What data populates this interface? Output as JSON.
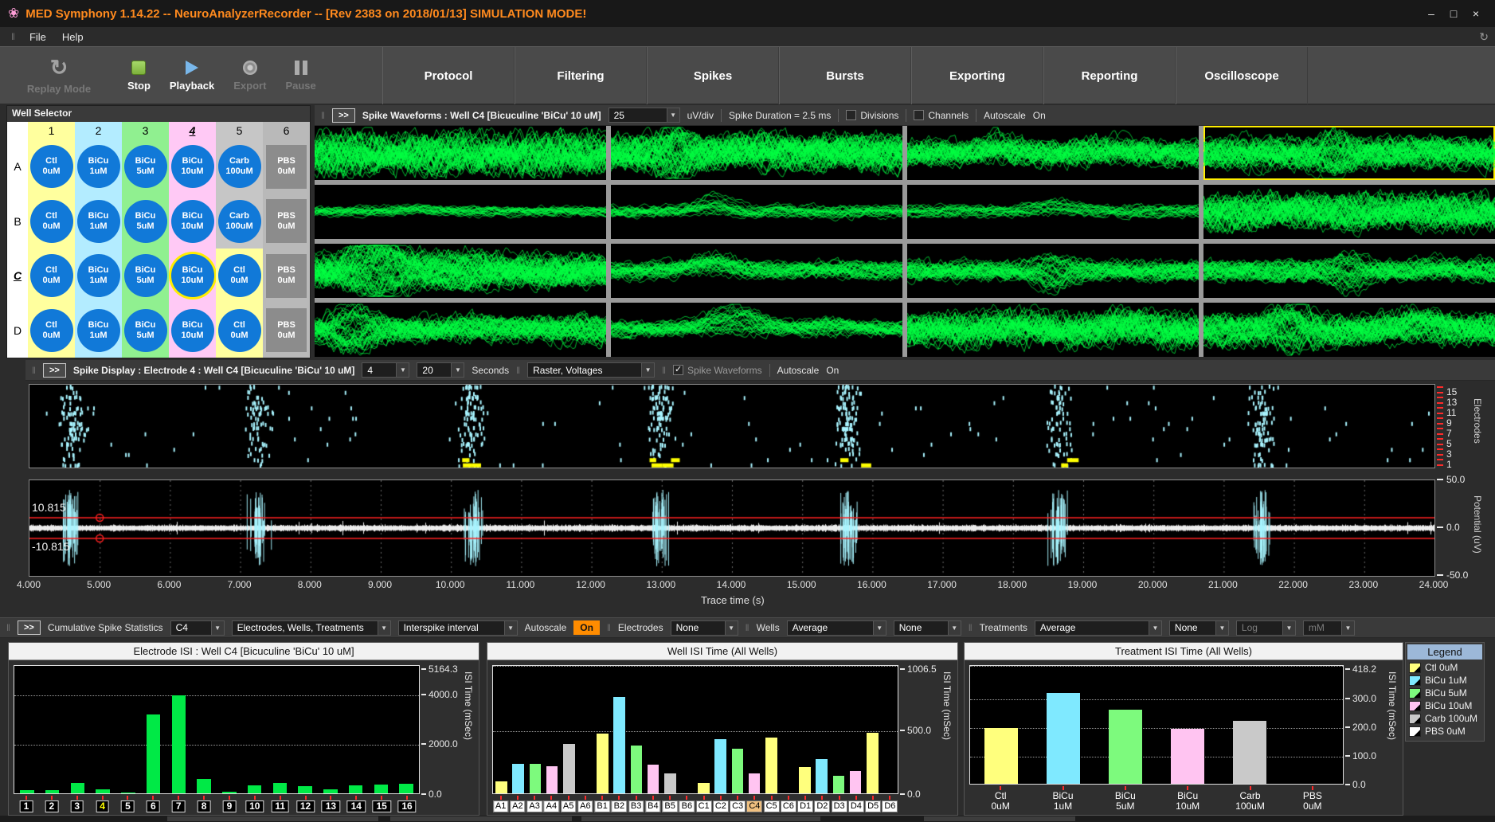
{
  "ui": {
    "grip": "‖",
    "collapse": ">>",
    "dropdown_arrow": "▼",
    "check": "✓"
  },
  "window": {
    "icon": "❀",
    "title": "MED Symphony 1.14.22 -- NeuroAnalyzerRecorder -- [Rev 2383 on 2018/01/13] SIMULATION MODE!",
    "minimize": "–",
    "maximize": "□",
    "close": "×"
  },
  "menu": {
    "items": [
      "File",
      "Help"
    ],
    "status_icon": "↻"
  },
  "toolbar": {
    "replay_label": "Replay Mode",
    "buttons": [
      {
        "label": "Stop",
        "icon": "stop-icon",
        "enabled": true
      },
      {
        "label": "Playback",
        "icon": "play-icon",
        "enabled": true
      },
      {
        "label": "Export",
        "icon": "record-icon",
        "enabled": false
      },
      {
        "label": "Pause",
        "icon": "pause-icon",
        "enabled": false
      }
    ],
    "tabs": [
      "Protocol",
      "Filtering",
      "Spikes",
      "Bursts",
      "Exporting",
      "Reporting",
      "Oscilloscope"
    ]
  },
  "well_selector": {
    "title": "Well Selector",
    "columns": [
      {
        "label": "1",
        "color": "#ffff9e"
      },
      {
        "label": "2",
        "color": "#b3ecff"
      },
      {
        "label": "3",
        "color": "#90f090"
      },
      {
        "label": "4",
        "color": "#ffc9f5"
      },
      {
        "label": "5",
        "color": "#c6c6c6"
      },
      {
        "label": "6",
        "color": "#b9b9b9"
      }
    ],
    "selected_column": "4",
    "rows": [
      "A",
      "B",
      "C",
      "D"
    ],
    "selected_row": "C",
    "well_color": "#1179d8",
    "wells": [
      [
        {
          "line1": "Ctl",
          "line2": "0uM",
          "bg": "#ffff9e",
          "kind": "circle"
        },
        {
          "line1": "BiCu",
          "line2": "1uM",
          "bg": "#b3ecff",
          "kind": "circle"
        },
        {
          "line1": "BiCu",
          "line2": "5uM",
          "bg": "#90f090",
          "kind": "circle"
        },
        {
          "line1": "BiCu",
          "line2": "10uM",
          "bg": "#ffc9f5",
          "kind": "circle"
        },
        {
          "line1": "Carb",
          "line2": "100uM",
          "bg": "#c6c6c6",
          "kind": "circle"
        },
        {
          "line1": "PBS",
          "line2": "0uM",
          "bg": "#b9b9b9",
          "kind": "block"
        }
      ],
      [
        {
          "line1": "Ctl",
          "line2": "0uM",
          "bg": "#ffff9e",
          "kind": "circle"
        },
        {
          "line1": "BiCu",
          "line2": "1uM",
          "bg": "#b3ecff",
          "kind": "circle"
        },
        {
          "line1": "BiCu",
          "line2": "5uM",
          "bg": "#90f090",
          "kind": "circle"
        },
        {
          "line1": "BiCu",
          "line2": "10uM",
          "bg": "#ffc9f5",
          "kind": "circle"
        },
        {
          "line1": "Carb",
          "line2": "100uM",
          "bg": "#c6c6c6",
          "kind": "circle"
        },
        {
          "line1": "PBS",
          "line2": "0uM",
          "bg": "#b9b9b9",
          "kind": "block"
        }
      ],
      [
        {
          "line1": "Ctl",
          "line2": "0uM",
          "bg": "#ffff9e",
          "kind": "circle"
        },
        {
          "line1": "BiCu",
          "line2": "1uM",
          "bg": "#b3ecff",
          "kind": "circle"
        },
        {
          "line1": "BiCu",
          "line2": "5uM",
          "bg": "#90f090",
          "kind": "circle"
        },
        {
          "line1": "BiCu",
          "line2": "10uM",
          "bg": "#ffc9f5",
          "kind": "circle",
          "selected": true
        },
        {
          "line1": "Ctl",
          "line2": "0uM",
          "bg": "#ffff9e",
          "kind": "circle"
        },
        {
          "line1": "PBS",
          "line2": "0uM",
          "bg": "#b9b9b9",
          "kind": "block"
        }
      ],
      [
        {
          "line1": "Ctl",
          "line2": "0uM",
          "bg": "#ffff9e",
          "kind": "circle"
        },
        {
          "line1": "BiCu",
          "line2": "1uM",
          "bg": "#b3ecff",
          "kind": "circle"
        },
        {
          "line1": "BiCu",
          "line2": "5uM",
          "bg": "#90f090",
          "kind": "circle"
        },
        {
          "line1": "BiCu",
          "line2": "10uM",
          "bg": "#ffc9f5",
          "kind": "circle"
        },
        {
          "line1": "Ctl",
          "line2": "0uM",
          "bg": "#ffff9e",
          "kind": "circle"
        },
        {
          "line1": "PBS",
          "line2": "0uM",
          "bg": "#b9b9b9",
          "kind": "block"
        }
      ]
    ]
  },
  "spike_waveforms": {
    "title": "Spike Waveforms : Well C4 [Bicuculine 'BiCu' 10 uM]",
    "scale_value": "25",
    "scale_unit": "uV/div",
    "duration_label": "Spike Duration = 2.5 ms",
    "divisions_label": "Divisions",
    "channels_label": "Channels",
    "autoscale_label": "Autoscale",
    "autoscale_state": "On",
    "trace_color": "#00ff41",
    "selected_cell": 3,
    "cells": [
      {
        "band": 0.4,
        "lines": 46,
        "seed": 11,
        "bumps": [
          {
            "x": 0.08,
            "w": 0.05,
            "h": 0.12,
            "sym": 1
          },
          {
            "x": 0.55,
            "w": 0.2,
            "h": 0.05,
            "sym": 1
          }
        ]
      },
      {
        "band": 0.34,
        "lines": 52,
        "seed": 22,
        "bumps": [
          {
            "x": 0.22,
            "w": 0.07,
            "h": 0.42,
            "sym": 1
          },
          {
            "x": 0.5,
            "w": 0.12,
            "h": 0.12,
            "sym": 0
          },
          {
            "x": 0.8,
            "w": 0.1,
            "h": 0.1,
            "sym": 0
          }
        ]
      },
      {
        "band": 0.28,
        "lines": 40,
        "seed": 33,
        "bumps": [
          {
            "x": 0.3,
            "w": 0.09,
            "h": 0.22,
            "sym": 0
          },
          {
            "x": 0.7,
            "w": 0.12,
            "h": 0.12,
            "sym": 0
          }
        ]
      },
      {
        "band": 0.3,
        "lines": 46,
        "seed": 44,
        "bumps": [
          {
            "x": 0.45,
            "w": 0.07,
            "h": 0.38,
            "sym": 1
          },
          {
            "x": 0.75,
            "w": 0.1,
            "h": 0.1,
            "sym": 0
          }
        ]
      },
      {
        "band": 0.1,
        "lines": 18,
        "seed": 55,
        "bumps": [
          {
            "x": 0.35,
            "w": 0.1,
            "h": 0.08,
            "sym": 0
          }
        ]
      },
      {
        "band": 0.12,
        "lines": 20,
        "seed": 66,
        "bumps": [
          {
            "x": 0.35,
            "w": 0.08,
            "h": 0.3,
            "sym": 0
          }
        ]
      },
      {
        "band": 0.12,
        "lines": 18,
        "seed": 77,
        "bumps": [
          {
            "x": 0.5,
            "w": 0.1,
            "h": 0.18,
            "sym": 0
          }
        ]
      },
      {
        "band": 0.34,
        "lines": 46,
        "seed": 88,
        "bumps": [
          {
            "x": 0.3,
            "w": 0.15,
            "h": 0.1,
            "sym": 0
          },
          {
            "x": 0.7,
            "w": 0.12,
            "h": 0.08,
            "sym": 0
          }
        ]
      },
      {
        "band": 0.3,
        "lines": 56,
        "seed": 99,
        "bumps": [
          {
            "x": 0.22,
            "w": 0.13,
            "h": 0.55,
            "sym": 1
          },
          {
            "x": 0.5,
            "w": 0.15,
            "h": 0.2,
            "sym": 1
          }
        ]
      },
      {
        "band": 0.18,
        "lines": 30,
        "seed": 101,
        "bumps": [
          {
            "x": 0.35,
            "w": 0.1,
            "h": 0.3,
            "sym": 0
          },
          {
            "x": 0.75,
            "w": 0.1,
            "h": 0.08,
            "sym": 0
          }
        ]
      },
      {
        "band": 0.2,
        "lines": 36,
        "seed": 112,
        "bumps": [
          {
            "x": 0.5,
            "w": 0.08,
            "h": 0.35,
            "sym": 1
          }
        ]
      },
      {
        "band": 0.22,
        "lines": 36,
        "seed": 123,
        "bumps": [
          {
            "x": 0.5,
            "w": 0.08,
            "h": 0.38,
            "sym": 1
          },
          {
            "x": 0.8,
            "w": 0.08,
            "h": 0.1,
            "sym": 0
          }
        ]
      },
      {
        "band": 0.26,
        "lines": 42,
        "seed": 134,
        "bumps": [
          {
            "x": 0.13,
            "w": 0.08,
            "h": 0.42,
            "sym": 1
          },
          {
            "x": 0.6,
            "w": 0.15,
            "h": 0.08,
            "sym": 0
          }
        ]
      },
      {
        "band": 0.16,
        "lines": 30,
        "seed": 145,
        "bumps": [
          {
            "x": 0.42,
            "w": 0.12,
            "h": 0.45,
            "sym": 0
          },
          {
            "x": 0.75,
            "w": 0.1,
            "h": 0.15,
            "sym": 0
          }
        ]
      },
      {
        "band": 0.34,
        "lines": 46,
        "seed": 156,
        "bumps": [
          {
            "x": 0.35,
            "w": 0.12,
            "h": 0.12,
            "sym": 0
          },
          {
            "x": 0.75,
            "w": 0.1,
            "h": 0.15,
            "sym": 0
          }
        ]
      },
      {
        "band": 0.3,
        "lines": 46,
        "seed": 167,
        "bumps": [
          {
            "x": 0.3,
            "w": 0.09,
            "h": 0.42,
            "sym": 1
          },
          {
            "x": 0.75,
            "w": 0.1,
            "h": 0.25,
            "sym": 0
          }
        ]
      }
    ]
  },
  "spike_display": {
    "title": "Spike Display : Electrode 4 : Well C4 [Bicuculine 'BiCu' 10 uM]",
    "window_value": "4",
    "span_value": "20",
    "seconds_label": "Seconds",
    "mode_value": "Raster, Voltages",
    "waveforms_label": "Spike Waveforms",
    "waveforms_checked": true,
    "autoscale_label": "Autoscale",
    "autoscale_state": "On",
    "time_range": [
      4,
      24
    ],
    "burst_times": [
      4.6,
      7.25,
      10.3,
      12.95,
      15.65,
      18.65,
      21.55
    ],
    "raster": {
      "ylabel": "Electrodes",
      "ytick_values": [
        15,
        13,
        11,
        9,
        7,
        5,
        3,
        1
      ],
      "electrodes": 16,
      "tick_color": "#a8f4ff",
      "yellow_color": "#ffff00",
      "yellow_bursts": [
        2,
        3,
        4,
        5
      ]
    },
    "trace": {
      "threshold_value": 10.815,
      "threshold_labels": [
        "10.815",
        "-10.815"
      ],
      "ylim": [
        -50,
        50
      ],
      "yticks": [
        "50.0",
        "0.0",
        "-50.0"
      ],
      "ylabel": "Potential (uV)",
      "xlabel": "Trace time (s)",
      "marker_time": 5.0
    }
  },
  "stats_bar": {
    "title": "Cumulative Spike Statistics",
    "well_value": "C4",
    "grouping_value": "Electrodes, Wells, Treatments",
    "metric_value": "Interspike interval",
    "autoscale_label": "Autoscale",
    "autoscale_state": "On",
    "electrodes_label": "Electrodes",
    "electrodes_value": "None",
    "wells_label": "Wells",
    "wells_avg_value": "Average",
    "wells_extra_value": "None",
    "treatments_label": "Treatments",
    "treatments_avg_value": "Average",
    "treatments_extra_value": "None",
    "log_value": "Log",
    "unit_value": "mM"
  },
  "legend": {
    "title": "Legend",
    "items": [
      {
        "label": "Ctl 0uM",
        "color": "#ffff7d"
      },
      {
        "label": "BiCu 1uM",
        "color": "#7fe9ff"
      },
      {
        "label": "BiCu 5uM",
        "color": "#7dfa7d"
      },
      {
        "label": "BiCu 10uM",
        "color": "#ffc4f1"
      },
      {
        "label": "Carb 100uM",
        "color": "#c9c9c9"
      },
      {
        "label": "PBS 0uM",
        "color": "#ffffff"
      }
    ]
  },
  "chart_data": [
    {
      "type": "bar",
      "title": "Electrode ISI : Well C4 [Bicuculine 'BiCu' 10 uM]",
      "categories": [
        "1",
        "2",
        "3",
        "4",
        "5",
        "6",
        "7",
        "8",
        "9",
        "10",
        "11",
        "12",
        "13",
        "14",
        "15",
        "16"
      ],
      "values": [
        120,
        130,
        430,
        150,
        20,
        3180,
        3980,
        590,
        50,
        330,
        420,
        280,
        170,
        330,
        360,
        400
      ],
      "bar_color": "#00e946",
      "ylabel": "ISI Time (mSec)",
      "ylim": [
        0,
        5164.3
      ],
      "yticks": [
        {
          "value": 5164.3,
          "label": "5164.3",
          "grid": false
        },
        {
          "value": 4000,
          "label": "4000.0",
          "grid": true
        },
        {
          "value": 2000,
          "label": "2000.0",
          "grid": true
        },
        {
          "value": 0,
          "label": "0.0",
          "grid": false
        }
      ],
      "category_style": "dark-box",
      "highlight_category": "4",
      "highlight_text_color": "#ffff00",
      "slot_fraction": 0.55
    },
    {
      "type": "bar",
      "title": "Well ISI Time (All Wells)",
      "categories": [
        "A1",
        "A2",
        "A3",
        "A4",
        "A5",
        "A6",
        "B1",
        "B2",
        "B3",
        "B4",
        "B5",
        "B6",
        "C1",
        "C2",
        "C3",
        "C4",
        "C5",
        "C6",
        "D1",
        "D2",
        "D3",
        "D4",
        "D5",
        "D6"
      ],
      "values": [
        95,
        230,
        235,
        215,
        390,
        0,
        475,
        760,
        380,
        225,
        160,
        0,
        80,
        425,
        355,
        155,
        440,
        0,
        205,
        270,
        140,
        175,
        480,
        0
      ],
      "colors": [
        "#ffff7d",
        "#7fe9ff",
        "#7dfa7d",
        "#ffc4f1",
        "#c9c9c9",
        "#ffffff",
        "#ffff7d",
        "#7fe9ff",
        "#7dfa7d",
        "#ffc4f1",
        "#c9c9c9",
        "#ffffff",
        "#ffff7d",
        "#7fe9ff",
        "#7dfa7d",
        "#ffc4f1",
        "#ffff7d",
        "#ffffff",
        "#ffff7d",
        "#7fe9ff",
        "#7dfa7d",
        "#ffc4f1",
        "#ffff7d",
        "#ffffff"
      ],
      "ylabel": "ISI Time (mSec)",
      "ylim": [
        0,
        1006.5
      ],
      "yticks": [
        {
          "value": 1006.5,
          "label": "1006.5",
          "grid": true
        },
        {
          "value": 500,
          "label": "500.0",
          "grid": true
        },
        {
          "value": 0,
          "label": "0.0",
          "grid": false
        }
      ],
      "category_style": "light-box",
      "highlight_category": "C4",
      "highlight_bg": "#f0c080",
      "slot_fraction": 0.7
    },
    {
      "type": "bar",
      "title": "Treatment ISI Time (All Wells)",
      "categories": [
        "Ctl\n0uM",
        "BiCu\n1uM",
        "BiCu\n5uM",
        "BiCu\n10uM",
        "Carb\n100uM",
        "PBS\n0uM"
      ],
      "values": [
        197,
        322,
        263,
        196,
        224,
        0
      ],
      "colors": [
        "#ffff7d",
        "#7fe9ff",
        "#7dfa7d",
        "#ffc4f1",
        "#c9c9c9",
        "#ffffff"
      ],
      "ylabel": "ISI Time (mSec)",
      "ylim": [
        0,
        418.2
      ],
      "yticks": [
        {
          "value": 418.2,
          "label": "418.2",
          "grid": true
        },
        {
          "value": 300,
          "label": "300.0",
          "grid": true
        },
        {
          "value": 200,
          "label": "200.0",
          "grid": true
        },
        {
          "value": 100,
          "label": "100.0",
          "grid": true
        },
        {
          "value": 0,
          "label": "0.0",
          "grid": false
        }
      ],
      "category_style": "plain",
      "two_line": true,
      "slot_fraction": 0.55
    }
  ]
}
